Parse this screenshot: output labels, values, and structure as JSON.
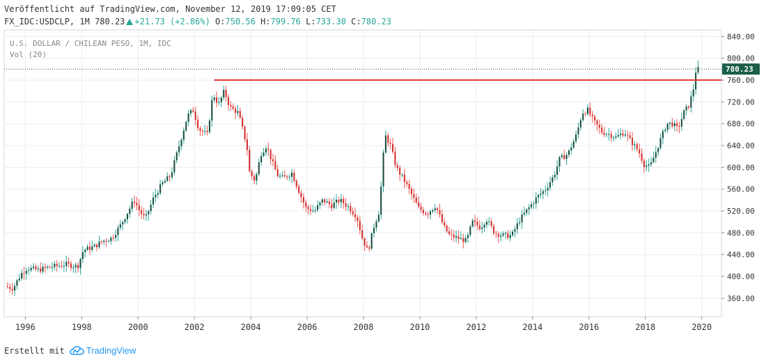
{
  "header": {
    "published_line": "Veröffentlicht auf TradingView.com, November 12, 2019 17:09:05 CET",
    "symbol": "FX_IDC:USDCLP, 1M",
    "last": "780.23",
    "change": "+21.73 (+2.86%)",
    "o_label": "O:",
    "o_value": "750.56",
    "h_label": "H:",
    "h_value": "799.76",
    "l_label": "L:",
    "l_value": "733.30",
    "c_label": "C:",
    "c_value": "780.23"
  },
  "legend": {
    "title": "U.S. DOLLAR / CHILEAN PESO, 1M, IDC",
    "volume": "Vol (20)"
  },
  "footer": {
    "made_with": "Erstellt mit",
    "brand": "TradingView"
  },
  "colors": {
    "up": "#26a69a",
    "down": "#ef5350",
    "up_body": "#1b4f3f",
    "down_body": "#d32f2f",
    "resistance": "#e53935",
    "last_tag_bg": "#1b5e4a",
    "grid": "#e8edf2",
    "axis_text": "#333333"
  },
  "chart_data": {
    "type": "candlestick",
    "title": "U.S. DOLLAR / CHILEAN PESO, 1M, IDC",
    "xlabel": "",
    "ylabel": "",
    "x_range": [
      1995.25,
      2020.7
    ],
    "ylim": [
      326,
      852
    ],
    "x_ticks": [
      1996,
      1998,
      2000,
      2002,
      2004,
      2006,
      2008,
      2010,
      2012,
      2014,
      2016,
      2018,
      2020
    ],
    "x_tick_labels": [
      "1996",
      "1998",
      "2000",
      "2002",
      "2004",
      "2006",
      "2008",
      "2010",
      "2012",
      "2014",
      "2016",
      "2018",
      "2020"
    ],
    "y_ticks": [
      360,
      400,
      440,
      480,
      520,
      560,
      600,
      640,
      680,
      720,
      760,
      800,
      840
    ],
    "y_tick_labels": [
      "360.00",
      "400.00",
      "440.00",
      "480.00",
      "520.00",
      "560.00",
      "600.00",
      "640.00",
      "680.00",
      "720.00",
      "760.00",
      "800.00",
      "840.00"
    ],
    "last_price": 780.23,
    "last_price_label": "780.23",
    "resistance_line": {
      "y": 760,
      "x_start": 2002.7,
      "x_end": 2020.7
    },
    "grid": true,
    "path_points": [
      [
        1995.33,
        382
      ],
      [
        1995.6,
        378
      ],
      [
        1995.9,
        405
      ],
      [
        1996.1,
        415
      ],
      [
        1996.5,
        412
      ],
      [
        1997.0,
        418
      ],
      [
        1997.5,
        422
      ],
      [
        1997.9,
        418
      ],
      [
        1998.1,
        448
      ],
      [
        1998.5,
        455
      ],
      [
        1998.8,
        465
      ],
      [
        1999.1,
        470
      ],
      [
        1999.4,
        492
      ],
      [
        1999.7,
        520
      ],
      [
        1999.9,
        540
      ],
      [
        2000.1,
        520
      ],
      [
        2000.3,
        505
      ],
      [
        2000.6,
        545
      ],
      [
        2000.9,
        570
      ],
      [
        2001.2,
        585
      ],
      [
        2001.5,
        640
      ],
      [
        2001.8,
        695
      ],
      [
        2002.0,
        705
      ],
      [
        2002.2,
        670
      ],
      [
        2002.5,
        660
      ],
      [
        2002.7,
        735
      ],
      [
        2002.9,
        715
      ],
      [
        2003.1,
        740
      ],
      [
        2003.3,
        710
      ],
      [
        2003.6,
        700
      ],
      [
        2003.9,
        640
      ],
      [
        2004.0,
        590
      ],
      [
        2004.2,
        575
      ],
      [
        2004.4,
        625
      ],
      [
        2004.6,
        640
      ],
      [
        2004.8,
        610
      ],
      [
        2005.0,
        585
      ],
      [
        2005.2,
        580
      ],
      [
        2005.5,
        590
      ],
      [
        2005.8,
        550
      ],
      [
        2006.0,
        525
      ],
      [
        2006.3,
        520
      ],
      [
        2006.6,
        540
      ],
      [
        2006.9,
        530
      ],
      [
        2007.2,
        540
      ],
      [
        2007.5,
        528
      ],
      [
        2007.8,
        510
      ],
      [
        2008.0,
        470
      ],
      [
        2008.2,
        445
      ],
      [
        2008.4,
        490
      ],
      [
        2008.6,
        520
      ],
      [
        2008.8,
        660
      ],
      [
        2009.0,
        640
      ],
      [
        2009.2,
        600
      ],
      [
        2009.5,
        575
      ],
      [
        2009.8,
        545
      ],
      [
        2010.0,
        525
      ],
      [
        2010.3,
        515
      ],
      [
        2010.6,
        530
      ],
      [
        2010.9,
        490
      ],
      [
        2011.1,
        475
      ],
      [
        2011.4,
        470
      ],
      [
        2011.7,
        465
      ],
      [
        2011.9,
        500
      ],
      [
        2012.2,
        490
      ],
      [
        2012.4,
        505
      ],
      [
        2012.7,
        480
      ],
      [
        2013.0,
        475
      ],
      [
        2013.3,
        475
      ],
      [
        2013.6,
        505
      ],
      [
        2013.9,
        525
      ],
      [
        2014.2,
        545
      ],
      [
        2014.5,
        560
      ],
      [
        2014.8,
        585
      ],
      [
        2015.0,
        615
      ],
      [
        2015.3,
        625
      ],
      [
        2015.6,
        660
      ],
      [
        2015.8,
        700
      ],
      [
        2016.0,
        705
      ],
      [
        2016.2,
        685
      ],
      [
        2016.5,
        665
      ],
      [
        2016.8,
        660
      ],
      [
        2017.0,
        655
      ],
      [
        2017.3,
        665
      ],
      [
        2017.5,
        650
      ],
      [
        2017.8,
        630
      ],
      [
        2018.0,
        605
      ],
      [
        2018.2,
        600
      ],
      [
        2018.5,
        640
      ],
      [
        2018.8,
        680
      ],
      [
        2019.0,
        680
      ],
      [
        2019.2,
        670
      ],
      [
        2019.4,
        700
      ],
      [
        2019.6,
        715
      ],
      [
        2019.75,
        745
      ],
      [
        2019.84,
        780
      ]
    ]
  }
}
